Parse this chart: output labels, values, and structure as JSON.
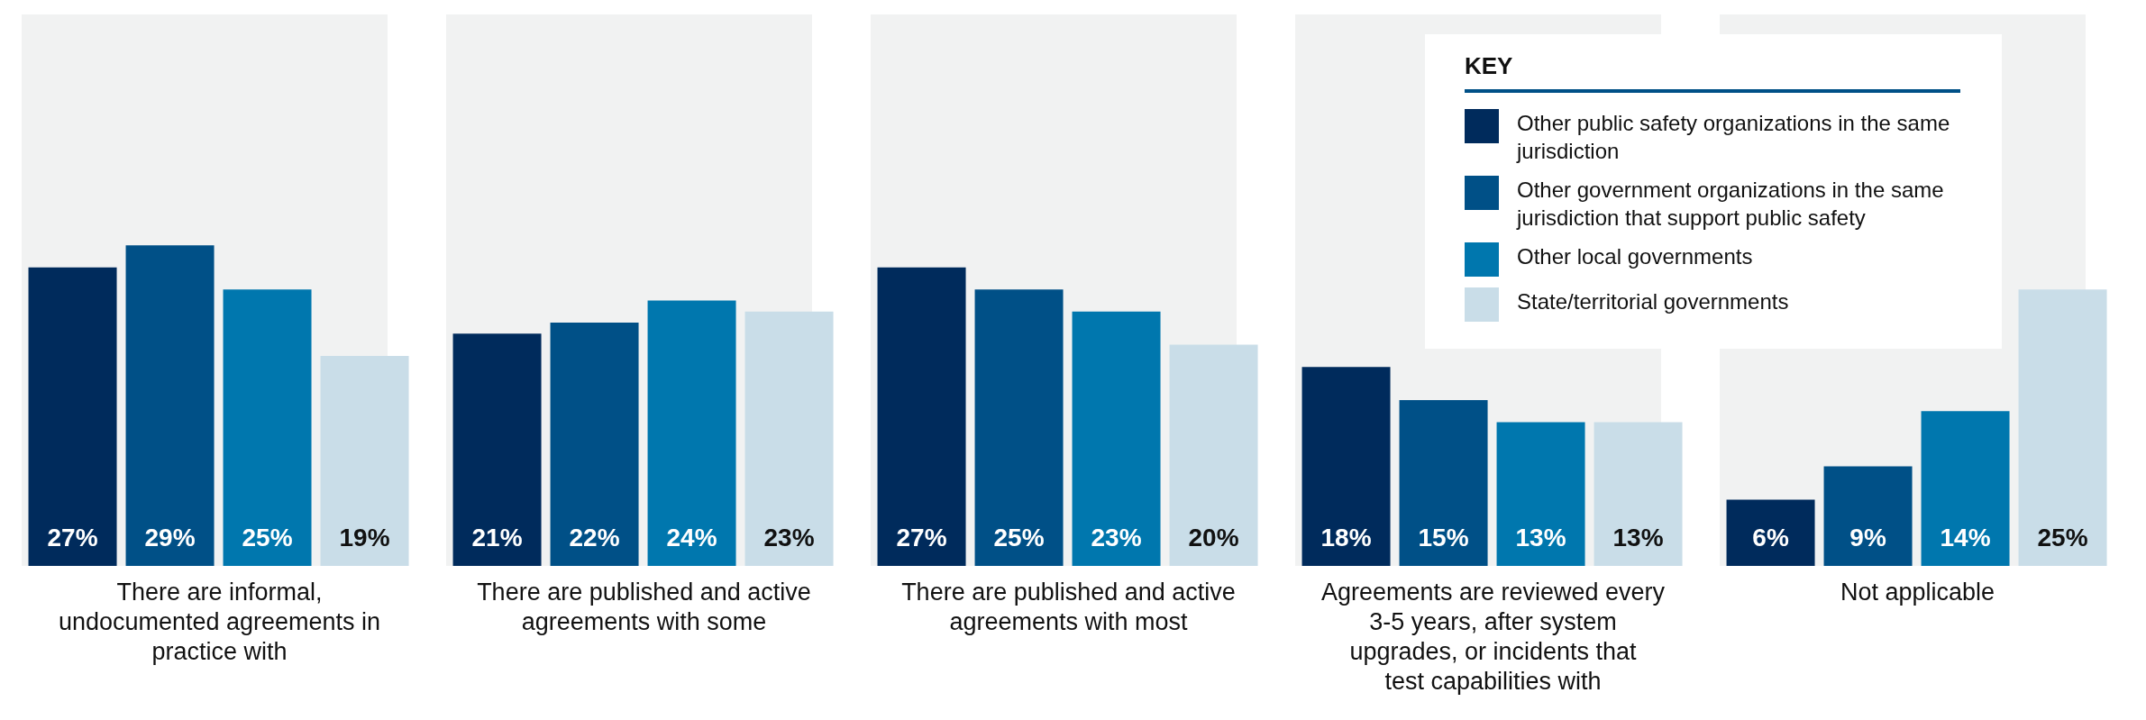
{
  "chart_data": {
    "type": "bar",
    "categories": [
      "There are informal, undocumented agreements in practice with",
      "There are published and active agreements with some",
      "There are published and active agreements with most",
      "Agreements are reviewed every 3-5 years, after system upgrades, or incidents that test capabilities with",
      "Not applicable"
    ],
    "series": [
      {
        "name": "Other public safety organizations in the same jurisdiction",
        "color": "#002b5c",
        "values": [
          27,
          21,
          27,
          18,
          6
        ],
        "value_labels": [
          "27%",
          "21%",
          "27%",
          "18%",
          "6%"
        ]
      },
      {
        "name": "Other government organizations in the same jurisdiction that support public safety",
        "color": "#005087",
        "values": [
          29,
          22,
          25,
          15,
          9
        ],
        "value_labels": [
          "29%",
          "22%",
          "25%",
          "15%",
          "9%"
        ]
      },
      {
        "name": "Other local governments",
        "color": "#0077ae",
        "values": [
          25,
          24,
          23,
          13,
          14
        ],
        "value_labels": [
          "25%",
          "24%",
          "23%",
          "13%",
          "14%"
        ]
      },
      {
        "name": "State/territorial governments",
        "color": "#c9dde8",
        "values": [
          19,
          23,
          20,
          13,
          25
        ],
        "value_labels": [
          "19%",
          "23%",
          "20%",
          "13%",
          "25%"
        ]
      }
    ],
    "legend_title": "KEY",
    "legend": "top right",
    "grid": false
  }
}
